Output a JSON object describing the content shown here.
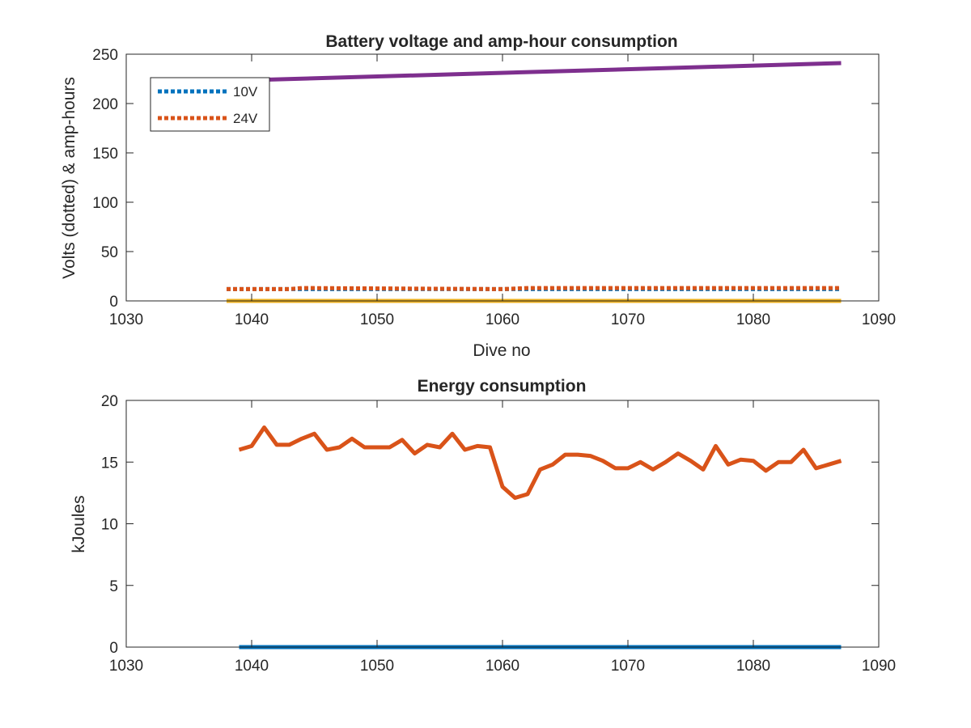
{
  "chart_data": [
    {
      "type": "line",
      "title": "Battery voltage and amp-hour consumption",
      "xlabel": "Dive no",
      "ylabel": "Volts (dotted) & amp-hours",
      "xlim": [
        1030,
        1090
      ],
      "ylim": [
        0,
        250
      ],
      "xticks": [
        1030,
        1040,
        1050,
        1060,
        1070,
        1080,
        1090
      ],
      "yticks": [
        0,
        50,
        100,
        150,
        200,
        250
      ],
      "grid": false,
      "legend_position": "top-left",
      "series": [
        {
          "name": "10V",
          "style": "dotted",
          "color": "#0072BD",
          "x": [
            1038,
            1087
          ],
          "y": [
            12,
            12
          ]
        },
        {
          "name": "24V",
          "style": "dotted",
          "color": "#D95319",
          "x": [
            1038,
            1043,
            1044,
            1060,
            1062,
            1087
          ],
          "y": [
            12,
            12,
            13,
            12,
            13,
            13
          ]
        },
        {
          "style": "solid",
          "color": "#EDB120",
          "x": [
            1038,
            1087
          ],
          "y": [
            0,
            0
          ]
        },
        {
          "style": "solid",
          "color": "#7E2F8E",
          "x": [
            1038,
            1087
          ],
          "y": [
            223,
            241
          ]
        }
      ]
    },
    {
      "type": "line",
      "title": "Energy consumption",
      "xlabel": "",
      "ylabel": "kJoules",
      "xlim": [
        1030,
        1090
      ],
      "ylim": [
        0,
        20
      ],
      "xticks": [
        1030,
        1040,
        1050,
        1060,
        1070,
        1080,
        1090
      ],
      "yticks": [
        0,
        5,
        10,
        15,
        20
      ],
      "grid": false,
      "series": [
        {
          "style": "solid",
          "color": "#0072BD",
          "x": [
            1039,
            1087
          ],
          "y": [
            0,
            0
          ]
        },
        {
          "style": "solid",
          "color": "#D95319",
          "x": [
            1039,
            1040,
            1041,
            1042,
            1043,
            1044,
            1045,
            1046,
            1047,
            1048,
            1049,
            1050,
            1051,
            1052,
            1053,
            1054,
            1055,
            1056,
            1057,
            1058,
            1059,
            1060,
            1061,
            1062,
            1063,
            1064,
            1065,
            1066,
            1067,
            1068,
            1069,
            1070,
            1071,
            1072,
            1073,
            1074,
            1075,
            1076,
            1077,
            1078,
            1079,
            1080,
            1081,
            1082,
            1083,
            1084,
            1085,
            1086,
            1087
          ],
          "y": [
            16.0,
            16.3,
            17.8,
            16.4,
            16.4,
            16.9,
            17.3,
            16.0,
            16.2,
            16.9,
            16.2,
            16.2,
            16.2,
            16.8,
            15.7,
            16.4,
            16.2,
            17.3,
            16.0,
            16.3,
            16.2,
            13.0,
            12.1,
            12.4,
            14.4,
            14.8,
            15.6,
            15.6,
            15.5,
            15.1,
            14.5,
            14.5,
            15.0,
            14.4,
            15.0,
            15.7,
            15.1,
            14.4,
            16.3,
            14.8,
            15.2,
            15.1,
            14.3,
            15.0,
            15.0,
            16.0,
            14.5,
            14.8,
            15.1
          ]
        }
      ]
    }
  ]
}
